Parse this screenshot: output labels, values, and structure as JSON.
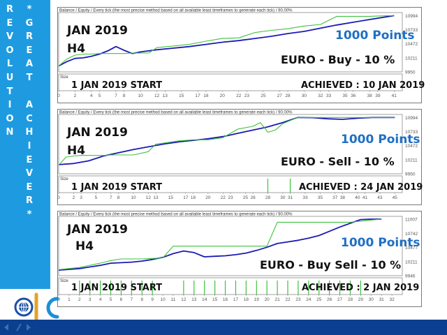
{
  "sidebar": {
    "left_letters": [
      "R",
      "E",
      "V",
      "O",
      "L",
      "U",
      "T",
      "I",
      "O",
      "N"
    ],
    "right_letters": [
      "*",
      "G",
      "R",
      "E",
      "A",
      "T",
      "",
      "A",
      "C",
      "H",
      "I",
      "E",
      "V",
      "E",
      "R",
      "*"
    ]
  },
  "colors": {
    "sidebar": "#1e9be0",
    "balance": "#1a1ab5",
    "equity": "#3cc23c",
    "footer": "#0b3f8f",
    "points_text": "#1f6fc4"
  },
  "chart_data": [
    {
      "type": "line",
      "header": "Balance / Equity / Every tick (the most precise method based on all available least timeframes to generate each tick) / 90.00%",
      "legend": [
        "Balance",
        "Equity"
      ],
      "overlay": {
        "month": "JAN 2019",
        "timeframe": "H4",
        "points": "1000 Points",
        "direction": "EURO - Buy - 10 %",
        "start": "1 JAN 2019 START",
        "achieved": "ACHIEVED : 10 JAN 2019"
      },
      "ylim": [
        9950,
        11050
      ],
      "yticks": [
        "10994",
        "10733",
        "10472",
        "10211",
        "9950"
      ],
      "ytick_values": [
        10994,
        10733,
        10472,
        10211,
        9950
      ],
      "xlim": [
        0,
        42
      ],
      "xticks": [
        "0",
        "2",
        "4",
        "5",
        "7",
        "8",
        "10",
        "12",
        "13",
        "15",
        "17",
        "18",
        "20",
        "22",
        "23",
        "25",
        "27",
        "28",
        "30",
        "32",
        "33",
        "35",
        "36",
        "38",
        "39",
        "41"
      ],
      "xtick_values": [
        0,
        2,
        4,
        5,
        7,
        8,
        10,
        12,
        13,
        15,
        17,
        18,
        20,
        22,
        23,
        25,
        27,
        28,
        30,
        32,
        33,
        35,
        36,
        38,
        39,
        41
      ],
      "series": [
        {
          "name": "Balance",
          "x": [
            0,
            1,
            2,
            3,
            4,
            5,
            6,
            7,
            8,
            9,
            10,
            12,
            14,
            16,
            18,
            20,
            22,
            24,
            26,
            28,
            30,
            32,
            34,
            36,
            38,
            40,
            41
          ],
          "y": [
            10060,
            10140,
            10200,
            10210,
            10240,
            10280,
            10340,
            10420,
            10350,
            10290,
            10320,
            10360,
            10390,
            10420,
            10460,
            10500,
            10530,
            10570,
            10610,
            10660,
            10700,
            10760,
            10820,
            10870,
            10920,
            10970,
            10994
          ]
        },
        {
          "name": "Equity",
          "x": [
            0,
            1,
            2,
            3,
            4,
            5,
            6,
            7,
            8,
            9,
            10,
            11,
            12,
            14,
            16,
            18,
            20,
            22,
            24,
            26,
            28,
            30,
            32,
            34,
            36,
            38,
            40,
            41
          ],
          "y": [
            10060,
            10190,
            10260,
            10280,
            10280,
            10290,
            10290,
            10290,
            10290,
            10300,
            10300,
            10300,
            10400,
            10430,
            10460,
            10520,
            10570,
            10580,
            10680,
            10720,
            10750,
            10800,
            10830,
            10980,
            10980,
            10980,
            10990,
            10994
          ]
        }
      ],
      "size_bars": []
    },
    {
      "type": "line",
      "header": "Balance / Equity / Every tick (the most precise method based on all available least timeframes to generate each tick) / 90.00%",
      "legend": [
        "Balance",
        "Equity"
      ],
      "overlay": {
        "month": "JAN 2019",
        "timeframe": "H4",
        "points": "1000 Points",
        "direction": "EURO - Sell  - 10 %",
        "start": "1 JAN 2019 START",
        "achieved": "ACHIEVED : 24 JAN 2019"
      },
      "ylim": [
        9950,
        11050
      ],
      "yticks": [
        "10994",
        "10733",
        "10472",
        "10211",
        "9950"
      ],
      "ytick_values": [
        10994,
        10733,
        10472,
        10211,
        9950
      ],
      "xlim": [
        0,
        46
      ],
      "xticks": [
        "0",
        "2",
        "3",
        "5",
        "7",
        "8",
        "10",
        "12",
        "13",
        "15",
        "17",
        "18",
        "20",
        "22",
        "23",
        "25",
        "26",
        "28",
        "30",
        "31",
        "33",
        "35",
        "37",
        "38",
        "40",
        "41",
        "43",
        "45"
      ],
      "xtick_values": [
        0,
        2,
        3,
        5,
        7,
        8,
        10,
        12,
        13,
        15,
        17,
        18,
        20,
        22,
        23,
        25,
        26,
        28,
        30,
        31,
        33,
        35,
        37,
        38,
        40,
        41,
        43,
        45
      ],
      "series": [
        {
          "name": "Balance",
          "x": [
            0,
            2,
            4,
            6,
            8,
            10,
            12,
            14,
            16,
            18,
            20,
            22,
            24,
            26,
            28,
            30,
            32,
            34,
            36,
            38,
            40,
            42,
            44,
            45
          ],
          "y": [
            10120,
            10140,
            10190,
            10280,
            10340,
            10400,
            10450,
            10500,
            10540,
            10570,
            10600,
            10640,
            10700,
            10760,
            10820,
            10900,
            10994,
            10990,
            10970,
            10960,
            10980,
            10994,
            10994,
            10994
          ]
        },
        {
          "name": "Equity",
          "x": [
            0,
            1,
            2,
            3,
            4,
            5,
            6,
            7,
            8,
            9,
            10,
            12,
            13,
            14,
            16,
            18,
            20,
            22,
            24,
            26,
            27,
            28,
            29,
            30,
            32,
            34,
            36,
            38,
            40,
            42,
            44,
            45
          ],
          "y": [
            10110,
            10260,
            10280,
            10290,
            10290,
            10290,
            10290,
            10300,
            10300,
            10300,
            10300,
            10360,
            10500,
            10520,
            10560,
            10580,
            10580,
            10620,
            10780,
            10830,
            10900,
            10720,
            10760,
            10880,
            10994,
            10994,
            10994,
            10994,
            10994,
            10994,
            10994,
            10994
          ]
        }
      ],
      "size_bars": [
        28,
        31
      ]
    },
    {
      "type": "line",
      "header": "Balance / Equity / Every tick (the most precise method based on all available least timeframes to generate each tick) / 90.00%",
      "legend": [
        "Balance",
        "Equity"
      ],
      "overlay": {
        "month": "JAN 2019",
        "timeframe": "H4",
        "points": "1000 Points",
        "direction": "EURO - Buy Sell - 10 %",
        "start": "1 JAN 2019 START",
        "achieved": "ACHIEVED : 2 JAN 2019"
      },
      "ylim": [
        9946,
        11060
      ],
      "yticks": [
        "11007",
        "10742",
        "10477",
        "10211",
        "9946"
      ],
      "ytick_values": [
        11007,
        10742,
        10477,
        10211,
        9946
      ],
      "xlim": [
        0,
        33
      ],
      "xticks": [
        "0",
        "1",
        "2",
        "3",
        "4",
        "5",
        "6",
        "7",
        "8",
        "9",
        "10",
        "11",
        "12",
        "13",
        "14",
        "15",
        "16",
        "17",
        "18",
        "19",
        "20",
        "21",
        "22",
        "23",
        "24",
        "25",
        "26",
        "27",
        "28",
        "29",
        "30",
        "31",
        "32"
      ],
      "xtick_values": [
        0,
        1,
        2,
        3,
        4,
        5,
        6,
        7,
        8,
        9,
        10,
        11,
        12,
        13,
        14,
        15,
        16,
        17,
        18,
        19,
        20,
        21,
        22,
        23,
        24,
        25,
        26,
        27,
        28,
        29,
        30,
        31,
        32
      ],
      "series": [
        {
          "name": "Balance",
          "x": [
            0,
            2,
            4,
            5,
            6,
            7,
            8,
            9,
            10,
            11,
            12,
            13,
            14,
            15,
            16,
            17,
            18,
            19,
            20,
            21,
            22,
            23,
            24,
            25,
            26,
            27,
            28,
            29,
            30,
            31
          ],
          "y": [
            10050,
            10080,
            10140,
            10180,
            10190,
            10200,
            10220,
            10250,
            10290,
            10360,
            10410,
            10380,
            10300,
            10310,
            10320,
            10340,
            10370,
            10420,
            10480,
            10550,
            10580,
            10610,
            10650,
            10700,
            10780,
            10860,
            10930,
            11000,
            11007,
            11007
          ]
        },
        {
          "name": "Equity",
          "x": [
            0,
            2,
            4,
            5,
            6,
            7,
            8,
            9,
            10,
            11,
            12,
            13,
            14,
            15,
            16,
            17,
            18,
            19,
            20,
            21,
            22,
            23,
            24,
            25,
            26,
            27,
            28,
            29,
            30,
            31
          ],
          "y": [
            10060,
            10100,
            10180,
            10230,
            10260,
            10260,
            10260,
            10270,
            10280,
            10500,
            10500,
            10500,
            10500,
            10500,
            10500,
            10500,
            10500,
            10500,
            10500,
            10950,
            10950,
            10950,
            10950,
            10950,
            10950,
            10950,
            10950,
            10970,
            10990,
            11007
          ]
        }
      ],
      "size_bars": [
        2,
        3,
        4,
        5,
        6,
        7,
        8,
        9,
        12,
        13,
        14,
        15,
        16,
        17,
        18,
        19,
        20,
        21,
        22,
        23,
        24,
        25,
        26,
        27,
        28,
        29
      ]
    }
  ]
}
